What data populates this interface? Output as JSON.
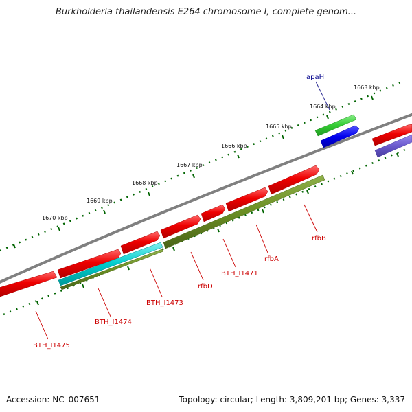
{
  "title": "Burkholderia thailandensis E264 chromosome I, complete genom...",
  "footer": {
    "accession": "Accession: NC_007651",
    "info": "Topology: circular; Length: 3,809,201 bp; Genes: 3,337"
  },
  "ticks": [
    "1663 kbp",
    "1664 kbp",
    "1665 kbp",
    "1666 kbp",
    "1667 kbp",
    "1668 kbp",
    "1669 kbp",
    "1670 kbp"
  ],
  "gene_labels": [
    {
      "text": "apaH",
      "color": "#00008b"
    },
    {
      "text": "rfbB",
      "color": "#cc0000"
    },
    {
      "text": "rfbA",
      "color": "#cc0000"
    },
    {
      "text": "BTH_I1471",
      "color": "#cc0000"
    },
    {
      "text": "rfbD",
      "color": "#cc0000"
    },
    {
      "text": "BTH_I1473",
      "color": "#cc0000"
    },
    {
      "text": "BTH_I1474",
      "color": "#cc0000"
    },
    {
      "text": "BTH_I1475",
      "color": "#cc0000"
    }
  ],
  "colors": {
    "backbone": "#808080",
    "forward_cds": "#ee0000",
    "reverse_olive": "#6b8e23",
    "reverse_cyan": "#00cccc",
    "forward_green": "#33cc33",
    "reverse_blue": "#0000ee",
    "reverse_slate": "#6a5acd",
    "tick": "#006400"
  }
}
